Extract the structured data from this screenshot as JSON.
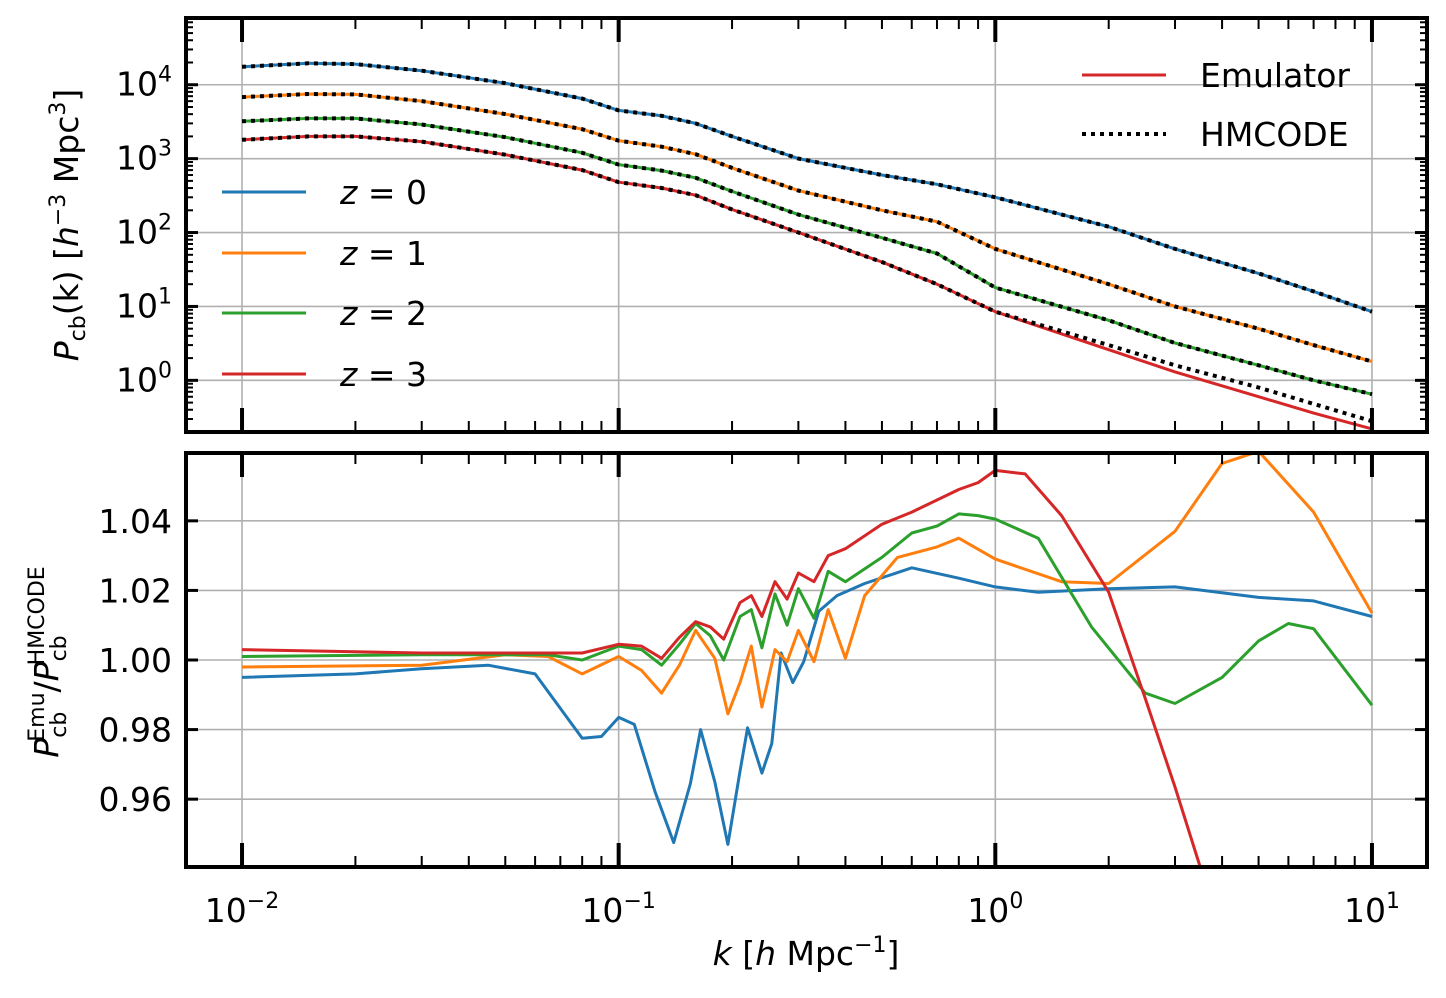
{
  "chart_data": [
    {
      "type": "line",
      "panel": "top",
      "xscale": "log",
      "yscale": "log",
      "xlim": [
        0.0071,
        14
      ],
      "ylim": [
        0.2,
        80000
      ],
      "grid": true,
      "ylabel": {
        "main": "P",
        "sub": "cb",
        "rest": "(k) [",
        "h": "h",
        "sup1": "−3",
        "mpc": " Mpc",
        "sup2": "3",
        "close": "]"
      },
      "xticks": [
        0.01,
        0.1,
        1,
        10
      ],
      "yticks": [
        {
          "value": 1,
          "base": "10",
          "exp": "0"
        },
        {
          "value": 10,
          "base": "10",
          "exp": "1"
        },
        {
          "value": 100,
          "base": "10",
          "exp": "2"
        },
        {
          "value": 1000,
          "base": "10",
          "exp": "3"
        },
        {
          "value": 10000,
          "base": "10",
          "exp": "4"
        }
      ],
      "legend_style": {
        "placement": "upper right",
        "entries": [
          {
            "label": "Emulator",
            "style": "solid",
            "color": "#d62728"
          },
          {
            "label": "HMCODE",
            "style": "dotted",
            "color": "#000000"
          }
        ]
      },
      "legend_z": {
        "placement": "center left",
        "entries": [
          {
            "var": "z",
            "eq": " = ",
            "val": "0",
            "color": "#1f77b4"
          },
          {
            "var": "z",
            "eq": " = ",
            "val": "1",
            "color": "#ff7f0e"
          },
          {
            "var": "z",
            "eq": " = ",
            "val": "2",
            "color": "#2ca02c"
          },
          {
            "var": "z",
            "eq": " = ",
            "val": "3",
            "color": "#d62728"
          }
        ]
      },
      "x": [
        0.01,
        0.015,
        0.02,
        0.03,
        0.05,
        0.08,
        0.1,
        0.13,
        0.16,
        0.2,
        0.3,
        0.5,
        0.7,
        1.0,
        2.0,
        3.0,
        5.0,
        7.0,
        10.0
      ],
      "series": [
        {
          "name": "z = 0",
          "color": "#1f77b4",
          "values": [
            17500,
            19500,
            19000,
            15500,
            10500,
            6500,
            4500,
            3800,
            3000,
            2000,
            1000,
            600,
            450,
            300,
            120,
            60,
            28,
            16,
            8.5
          ]
        },
        {
          "name": "z = 1",
          "color": "#ff7f0e",
          "values": [
            6800,
            7500,
            7400,
            6000,
            4000,
            2500,
            1750,
            1450,
            1150,
            750,
            370,
            200,
            140,
            60,
            20,
            10,
            5,
            3,
            1.8
          ]
        },
        {
          "name": "z = 2",
          "color": "#2ca02c",
          "values": [
            3200,
            3500,
            3500,
            2900,
            1950,
            1200,
            830,
            690,
            550,
            360,
            175,
            85,
            52,
            18,
            6.5,
            3.2,
            1.6,
            1.0,
            0.65
          ]
        },
        {
          "name": "z = 3",
          "color": "#d62728",
          "values": [
            1800,
            2000,
            2000,
            1700,
            1130,
            700,
            480,
            400,
            320,
            205,
            100,
            40,
            20,
            8.5,
            2.6,
            1.3,
            0.6,
            0.36,
            0.22
          ]
        }
      ],
      "hmcode_z3_tail": {
        "x": [
          1.0,
          2.0,
          3.0,
          5.0,
          7.0,
          10.0
        ],
        "values": [
          8.5,
          3.0,
          1.6,
          0.8,
          0.48,
          0.28
        ]
      }
    },
    {
      "type": "line",
      "panel": "bottom",
      "xscale": "log",
      "xlim": [
        0.0071,
        14
      ],
      "ylim": [
        0.9405,
        1.0595
      ],
      "grid": true,
      "xlabel": {
        "var": "k",
        "open": " [",
        "h": "h",
        "mpc": " Mpc",
        "sup": "−1",
        "close": "]"
      },
      "ylabel": {
        "p1": "P",
        "sub1": "cb",
        "sup1": "Emu",
        "slash": "/",
        "p2": "P",
        "sub2": "cb",
        "sup2": "HMCODE"
      },
      "xticks": [
        {
          "value": 0.01,
          "base": "10",
          "exp": "−2"
        },
        {
          "value": 0.1,
          "base": "10",
          "exp": "−1"
        },
        {
          "value": 1,
          "base": "10",
          "exp": "0"
        },
        {
          "value": 10,
          "base": "10",
          "exp": "1"
        }
      ],
      "yticks": [
        {
          "value": 0.96,
          "label": "0.96"
        },
        {
          "value": 0.98,
          "label": "0.98"
        },
        {
          "value": 1.0,
          "label": "1.00"
        },
        {
          "value": 1.02,
          "label": "1.02"
        },
        {
          "value": 1.04,
          "label": "1.04"
        }
      ],
      "series": [
        {
          "name": "z = 0",
          "color": "#1f77b4",
          "x": [
            0.01,
            0.02,
            0.03,
            0.045,
            0.06,
            0.08,
            0.09,
            0.1,
            0.11,
            0.125,
            0.14,
            0.155,
            0.165,
            0.18,
            0.195,
            0.21,
            0.22,
            0.24,
            0.255,
            0.27,
            0.29,
            0.31,
            0.34,
            0.38,
            0.45,
            0.6,
            0.8,
            1.0,
            1.3,
            2.0,
            3.0,
            5.0,
            7.0,
            10.0
          ],
          "values": [
            0.995,
            0.996,
            0.9975,
            0.9985,
            0.996,
            0.9775,
            0.978,
            0.9835,
            0.9815,
            0.962,
            0.9475,
            0.9645,
            0.98,
            0.965,
            0.947,
            0.968,
            0.9805,
            0.9675,
            0.976,
            1.002,
            0.9935,
            0.9995,
            1.014,
            1.0185,
            1.022,
            1.0265,
            1.0235,
            1.021,
            1.0195,
            1.0205,
            1.021,
            1.018,
            1.017,
            1.0125
          ]
        },
        {
          "name": "z = 1",
          "color": "#ff7f0e",
          "x": [
            0.01,
            0.03,
            0.05,
            0.065,
            0.08,
            0.1,
            0.115,
            0.13,
            0.145,
            0.16,
            0.18,
            0.195,
            0.21,
            0.225,
            0.24,
            0.26,
            0.28,
            0.3,
            0.33,
            0.36,
            0.4,
            0.45,
            0.55,
            0.7,
            0.8,
            1.0,
            1.5,
            2.0,
            3.0,
            4.0,
            5.0,
            7.0,
            10.0
          ],
          "values": [
            0.998,
            0.9985,
            1.0015,
            1.001,
            0.996,
            1.001,
            0.997,
            0.9905,
            0.9985,
            1.0085,
            1.0005,
            0.9845,
            0.9935,
            1.004,
            0.9865,
            1.003,
            0.9995,
            1.0085,
            0.9995,
            1.0145,
            1.0005,
            1.0185,
            1.0295,
            1.0325,
            1.035,
            1.029,
            1.0225,
            1.022,
            1.037,
            1.0565,
            1.06,
            1.0425,
            1.0135
          ]
        },
        {
          "name": "z = 2",
          "color": "#2ca02c",
          "x": [
            0.01,
            0.03,
            0.05,
            0.065,
            0.08,
            0.1,
            0.115,
            0.13,
            0.145,
            0.16,
            0.175,
            0.19,
            0.21,
            0.225,
            0.24,
            0.26,
            0.28,
            0.3,
            0.33,
            0.36,
            0.4,
            0.5,
            0.6,
            0.7,
            0.8,
            0.9,
            1.0,
            1.3,
            1.8,
            2.5,
            3.0,
            4.0,
            5.0,
            6.0,
            7.0,
            10.0
          ],
          "values": [
            1.001,
            1.0015,
            1.0015,
            1.0015,
            1.0,
            1.004,
            1.003,
            0.9985,
            1.0045,
            1.0105,
            1.007,
            1.0,
            1.0125,
            1.0145,
            1.0035,
            1.019,
            1.01,
            1.0205,
            1.012,
            1.0255,
            1.0225,
            1.0295,
            1.0365,
            1.0385,
            1.042,
            1.0415,
            1.0405,
            1.035,
            1.0095,
            0.9905,
            0.9875,
            0.995,
            1.0055,
            1.0105,
            1.009,
            0.987
          ]
        },
        {
          "name": "z = 3",
          "color": "#d62728",
          "x": [
            0.01,
            0.03,
            0.05,
            0.065,
            0.08,
            0.1,
            0.115,
            0.13,
            0.145,
            0.16,
            0.175,
            0.19,
            0.21,
            0.225,
            0.24,
            0.26,
            0.28,
            0.3,
            0.33,
            0.36,
            0.4,
            0.5,
            0.6,
            0.7,
            0.8,
            0.9,
            1.0,
            1.2,
            1.5,
            2.0,
            2.5,
            3.0,
            3.5
          ],
          "values": [
            1.003,
            1.002,
            1.002,
            1.002,
            1.002,
            1.0045,
            1.004,
            1.0005,
            1.0065,
            1.011,
            1.0095,
            1.006,
            1.0165,
            1.0185,
            1.0125,
            1.0225,
            1.0175,
            1.025,
            1.0225,
            1.03,
            1.032,
            1.039,
            1.0425,
            1.046,
            1.049,
            1.051,
            1.0545,
            1.0535,
            1.0415,
            1.0195,
            0.989,
            0.9635,
            0.9405
          ]
        }
      ]
    }
  ]
}
